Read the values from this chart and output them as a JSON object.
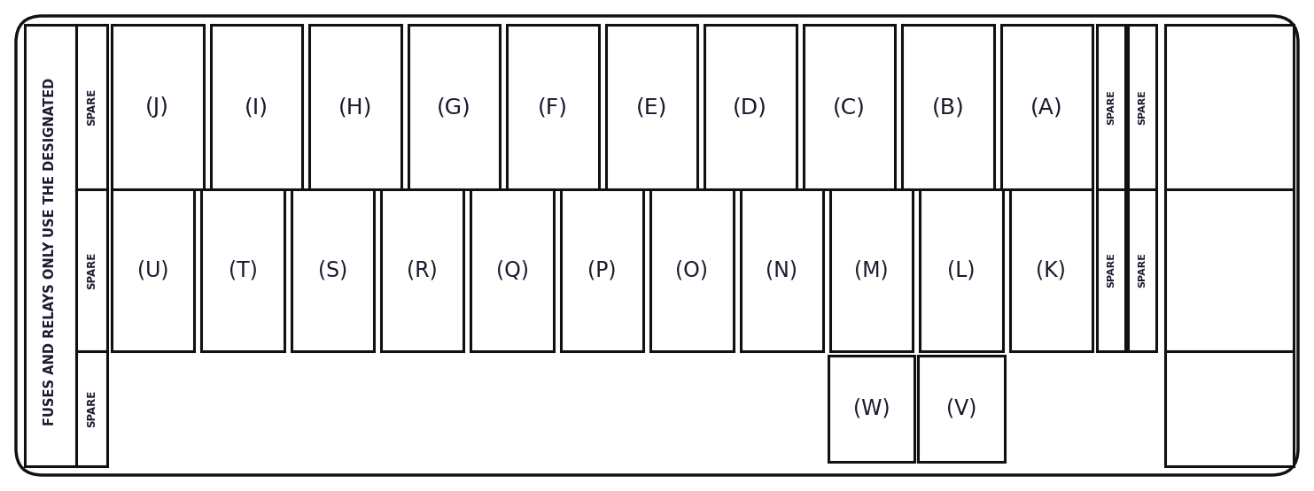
{
  "bg_color": "#ffffff",
  "border_color": "#111111",
  "text_color": "#1a1a2e",
  "fig_width": 14.83,
  "fig_height": 5.55,
  "left_text_line1": "FUSES AND RELAYS ONLY",
  "left_text_line2": "USE THE DESIGNATED",
  "row1_fuses": [
    "(J)",
    "(I)",
    "(H)",
    "(G)",
    "(F)",
    "(E)",
    "(D)",
    "(C)",
    "(B)",
    "(A)"
  ],
  "row2_fuses": [
    "(U)",
    "(T)",
    "(S)",
    "(R)",
    "(Q)",
    "(P)",
    "(O)",
    "(N)",
    "(M)",
    "(L)",
    "(K)"
  ],
  "row3_fuses": [
    "(W)",
    "(V)"
  ],
  "fuse_lw": 2.2
}
